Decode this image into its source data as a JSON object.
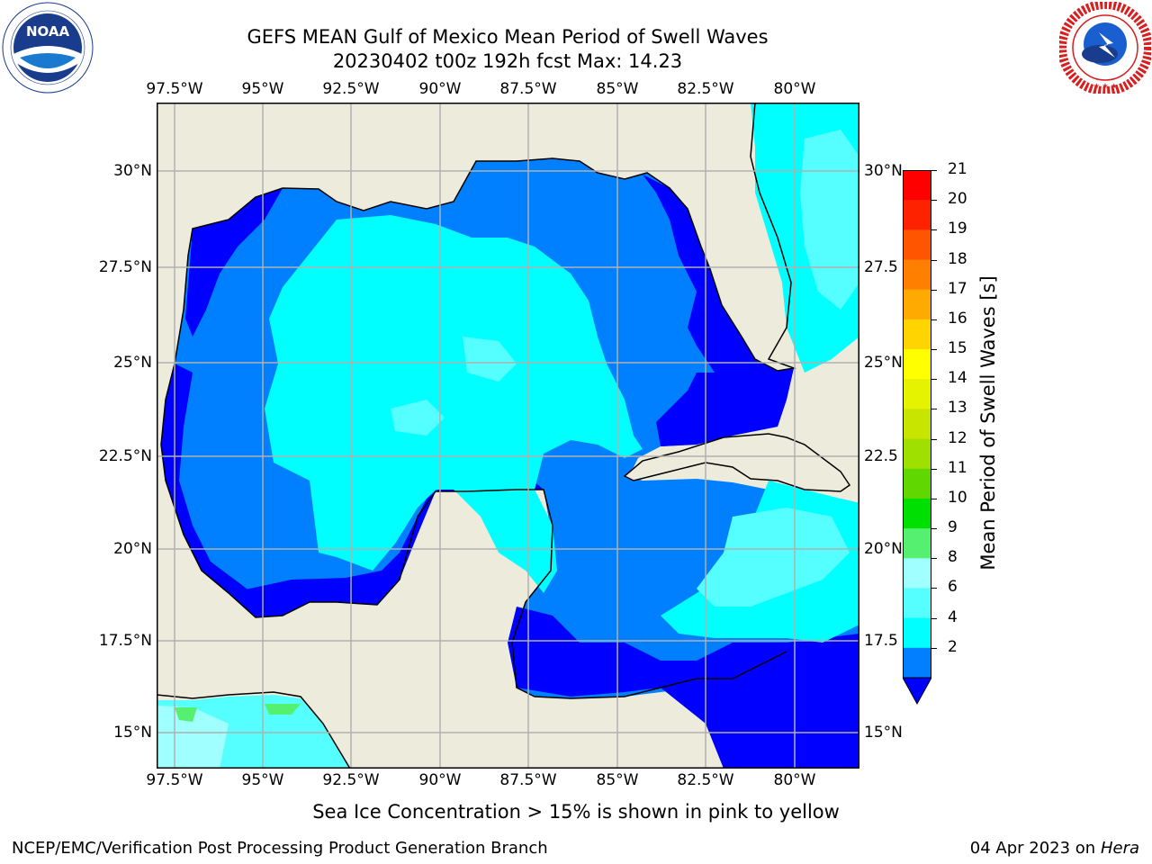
{
  "title": {
    "line1": "GEFS MEAN Gulf of Mexico Mean Period of Swell Waves",
    "line2": "20230402 t00z 192h fcst   Max: 14.23"
  },
  "logos": {
    "noaa": {
      "icon": "noaa-logo",
      "text": "NOAA"
    },
    "nws": {
      "icon": "nws-logo",
      "text": "NATIONAL WEATHER SERVICE"
    }
  },
  "axes": {
    "lon_labels": [
      "97.5°W",
      "95°W",
      "92.5°W",
      "90°W",
      "87.5°W",
      "85°W",
      "82.5°W",
      "80°W"
    ],
    "lat_labels_left": [
      "30°N",
      "27.5°N",
      "25°N",
      "22.5°N",
      "20°N",
      "17.5°N",
      "15°N"
    ],
    "lat_labels_right": [
      "30°N",
      "27.5",
      "25°N",
      "22.5",
      "20°N",
      "17.5",
      "15°N"
    ]
  },
  "colorbar": {
    "label": "Mean Period of Swell Waves [s]",
    "ticks": [
      "21",
      "20",
      "19",
      "18",
      "17",
      "16",
      "15",
      "14",
      "13",
      "12",
      "11",
      "10",
      "9",
      "8",
      "6",
      "4",
      "2"
    ],
    "colors": [
      "#ff0000",
      "#ff2200",
      "#ff5500",
      "#ff7f00",
      "#ffaa00",
      "#ffd400",
      "#ffff00",
      "#e5f200",
      "#c8e500",
      "#a0e000",
      "#60d800",
      "#00e000",
      "#55f070",
      "#a0ffff",
      "#55ffff",
      "#00ffff",
      "#0080ff"
    ],
    "extend_color": "#0000ff"
  },
  "map_colors": {
    "land": "#edecdc",
    "bin_2_4": "#0080ff",
    "bin_below_2": "#0000ff",
    "bin_4_6": "#00ffff",
    "bin_6_8": "#55ffff",
    "bin_8_9": "#a0ffff",
    "bin_9_10": "#55f070",
    "grid": "#b0b0b0"
  },
  "note": "Sea Ice Concentration > 15% is shown in pink to yellow",
  "footer": {
    "left": "NCEP/EMC/Verification Post Processing Product Generation Branch",
    "date": "04 Apr 2023 on",
    "host": "Hera"
  }
}
